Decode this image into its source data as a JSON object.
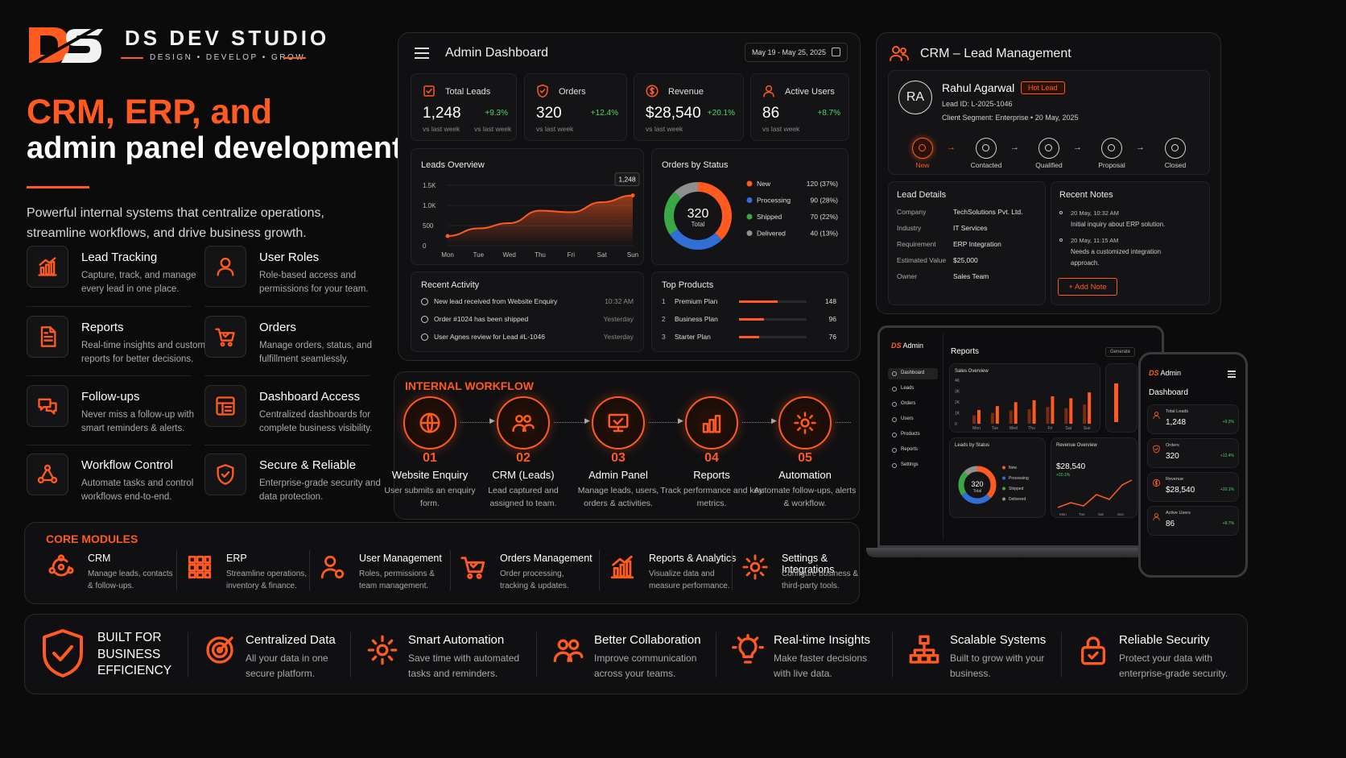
{
  "brand": {
    "name": "DS DEV STUDIO",
    "tagline": "DESIGN • DEVELOP • GROW",
    "logo_text": "DS"
  },
  "hero": {
    "title_line1": "CRM, ERP, and",
    "title_line2": "admin panel development",
    "subtitle": "Powerful internal systems that centralize operations, streamline workflows, and drive business growth."
  },
  "features": [
    {
      "icon": "chart-up-icon",
      "title": "Lead Tracking",
      "desc": "Capture, track, and manage every lead in one place."
    },
    {
      "icon": "user-icon",
      "title": "User Roles",
      "desc": "Role-based access and permissions for your team."
    },
    {
      "icon": "document-icon",
      "title": "Reports",
      "desc": "Real-time insights and custom reports for better decisions."
    },
    {
      "icon": "cart-icon",
      "title": "Orders",
      "desc": "Manage orders, status, and fulfillment seamlessly."
    },
    {
      "icon": "chat-icon",
      "title": "Follow-ups",
      "desc": "Never miss a follow-up with smart reminders & alerts."
    },
    {
      "icon": "dashboard-icon",
      "title": "Dashboard Access",
      "desc": "Centralized dashboards for complete business visibility."
    },
    {
      "icon": "workflow-icon",
      "title": "Workflow Control",
      "desc": "Automate tasks and control workflows end-to-end."
    },
    {
      "icon": "shield-icon",
      "title": "Secure & Reliable",
      "desc": "Enterprise-grade security and data protection."
    }
  ],
  "dashboard": {
    "title": "Admin Dashboard",
    "date_range": "May 19 - May 25, 2025",
    "kpis": [
      {
        "icon": "leads-icon",
        "label": "Total Leads",
        "value": "1,248",
        "change": "+9.3%",
        "sub": "vs last week"
      },
      {
        "icon": "orders-icon",
        "label": "Orders",
        "value": "320",
        "change": "+12.4%",
        "sub": "vs last week"
      },
      {
        "icon": "revenue-icon",
        "label": "Revenue",
        "value": "$28,540",
        "change": "+20.1%",
        "sub": "vs last week"
      },
      {
        "icon": "users-icon",
        "label": "Active Users",
        "value": "86",
        "change": "+8.7%",
        "sub": "vs last week"
      }
    ],
    "recent_activity": {
      "title": "Recent Activity",
      "items": [
        {
          "text": "New lead received from Website Enquiry",
          "time": "10:32 AM"
        },
        {
          "text": "Order #1024 has been shipped",
          "time": "Yesterday"
        },
        {
          "text": "User Agnes review for Lead #L-1046",
          "time": "Yesterday"
        }
      ]
    },
    "top_products": {
      "title": "Top Products",
      "items": [
        {
          "rank": "1",
          "name": "Premium Plan",
          "value": 148
        },
        {
          "rank": "2",
          "name": "Business Plan",
          "value": 96
        },
        {
          "rank": "3",
          "name": "Starter Plan",
          "value": 76
        }
      ]
    }
  },
  "chart_data": [
    {
      "type": "area",
      "title": "Leads Overview",
      "categories": [
        "Mon",
        "Tue",
        "Wed",
        "Thu",
        "Fri",
        "Sat",
        "Sun"
      ],
      "values": [
        240,
        430,
        560,
        870,
        830,
        1080,
        1248
      ],
      "ylim": [
        0,
        1500
      ],
      "yticks": [
        "0",
        "500",
        "1.0K",
        "1.5K"
      ],
      "annotation": "1,248"
    },
    {
      "type": "pie",
      "title": "Orders by Status",
      "center_value": "320",
      "center_label": "Total",
      "slices": [
        {
          "name": "New",
          "value": 120,
          "label": "120 (37%)",
          "color": "#ff5a1f"
        },
        {
          "name": "Processing",
          "value": 90,
          "label": "90 (28%)",
          "color": "#2f6fd6"
        },
        {
          "name": "Shipped",
          "value": 70,
          "label": "70 (22%)",
          "color": "#3aa845"
        },
        {
          "name": "Delivered",
          "value": 40,
          "label": "40 (13%)",
          "color": "#8f8f8f"
        }
      ]
    }
  ],
  "crm": {
    "title": "CRM – Lead Management",
    "lead": {
      "initials": "RA",
      "name": "Rahul Agarwal",
      "badge": "Hot Lead",
      "id": "Lead ID: L-2025-1046",
      "segment": "Client Segment: Enterprise  •  20 May, 2025"
    },
    "stages": [
      "New",
      "Contacted",
      "Qualified",
      "Proposal",
      "Closed"
    ],
    "details_title": "Lead Details",
    "details": [
      {
        "k": "Company",
        "v": "TechSolutions Pvt. Ltd."
      },
      {
        "k": "Industry",
        "v": "IT Services"
      },
      {
        "k": "Requirement",
        "v": "ERP Integration"
      },
      {
        "k": "Estimated Value",
        "v": "$25,000"
      },
      {
        "k": "Owner",
        "v": "Sales Team"
      }
    ],
    "notes_title": "Recent Notes",
    "notes": [
      {
        "time": "20 May, 10:32 AM",
        "text": "Initial inquiry about ERP solution."
      },
      {
        "time": "20 May, 11:15 AM",
        "text": "Needs a customized integration approach."
      }
    ],
    "add_note": "+  Add Note"
  },
  "laptop": {
    "brand": "Admin",
    "nav": [
      "Dashboard",
      "Leads",
      "Orders",
      "Users",
      "Products",
      "Reports",
      "Settings"
    ],
    "title": "Reports",
    "generate": "Generate",
    "sales_title": "Sales Overview",
    "sales_bars": [
      35,
      45,
      55,
      60,
      70,
      65,
      80
    ],
    "sales_days": [
      "Mon",
      "Tue",
      "Wed",
      "Thu",
      "Fri",
      "Sat",
      "Sun"
    ],
    "sales_yticks": [
      "4K",
      "3K",
      "2K",
      "1K",
      "0"
    ],
    "status_title": "Leads by Status",
    "status_value": "320",
    "status_label": "Total",
    "status_legend": [
      "New",
      "Processing",
      "Shipped",
      "Delivered"
    ],
    "rev_title": "Revenue Overview",
    "rev_value": "$28,540",
    "rev_change": "+20.1%",
    "rev_days": [
      "Mon",
      "Tue",
      "Sat",
      "Sun"
    ]
  },
  "phone": {
    "brand": "Admin",
    "title": "Dashboard",
    "cards": [
      {
        "label": "Total Leads",
        "value": "1,248",
        "change": "+9.3%"
      },
      {
        "label": "Orders",
        "value": "320",
        "change": "+12.4%"
      },
      {
        "label": "Revenue",
        "value": "$28,540",
        "change": "+20.1%"
      },
      {
        "label": "Active Users",
        "value": "86",
        "change": "+8.7%"
      }
    ]
  },
  "workflow": {
    "title": "INTERNAL WORKFLOW",
    "steps": [
      {
        "n": "01",
        "title": "Website Enquiry",
        "desc": "User submits an enquiry form."
      },
      {
        "n": "02",
        "title": "CRM (Leads)",
        "desc": "Lead captured and assigned to team."
      },
      {
        "n": "03",
        "title": "Admin Panel",
        "desc": "Manage leads, users, orders & activities."
      },
      {
        "n": "04",
        "title": "Reports",
        "desc": "Track performance and key metrics."
      },
      {
        "n": "05",
        "title": "Automation",
        "desc": "Automate follow-ups, alerts & workflow."
      }
    ]
  },
  "modules": {
    "title": "CORE MODULES",
    "items": [
      {
        "title": "CRM",
        "desc": "Manage leads, contacts & follow-ups."
      },
      {
        "title": "ERP",
        "desc": "Streamline operations, inventory & finance."
      },
      {
        "title": "User Management",
        "desc": "Roles, permissions & team management."
      },
      {
        "title": "Orders Management",
        "desc": "Order processing, tracking & updates."
      },
      {
        "title": "Reports & Analytics",
        "desc": "Visualize data and measure performance."
      },
      {
        "title": "Settings & Integrations",
        "desc": "Configure business & third-party tools."
      }
    ]
  },
  "benefits": {
    "headline": "BUILT FOR BUSINESS EFFICIENCY",
    "items": [
      {
        "title": "Centralized Data",
        "desc": "All your data in one secure platform."
      },
      {
        "title": "Smart Automation",
        "desc": "Save time with automated tasks and reminders."
      },
      {
        "title": "Better Collaboration",
        "desc": "Improve communication across your teams."
      },
      {
        "title": "Real-time Insights",
        "desc": "Make faster decisions with live data."
      },
      {
        "title": "Scalable Systems",
        "desc": "Built to grow with your business."
      },
      {
        "title": "Reliable Security",
        "desc": "Protect your data with enterprise-grade security."
      }
    ]
  }
}
